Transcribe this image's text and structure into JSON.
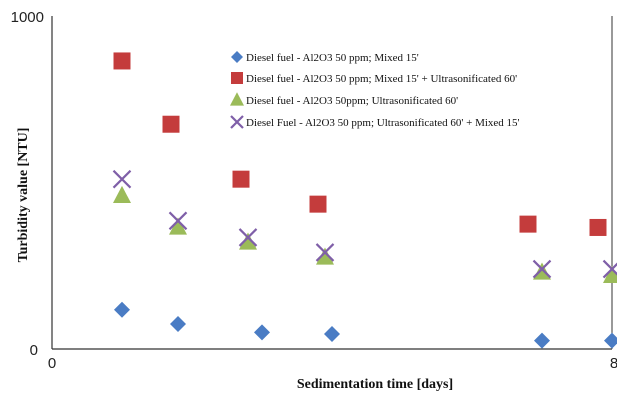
{
  "chart_data": {
    "type": "scatter",
    "xlabel": "Sedimentation time [days]",
    "ylabel": "Turbidity value [NTU]",
    "xlim": [
      0,
      8
    ],
    "ylim": [
      0,
      1000
    ],
    "x_ticks": [
      "0",
      "8"
    ],
    "y_ticks": [
      "0",
      "1000"
    ],
    "grid": false,
    "legend_position": "top-right",
    "series": [
      {
        "name": "Diesel fuel - Al2O3 50 ppm; Mixed 15'",
        "marker": "diamond",
        "color": "#4a7cc4",
        "points": [
          {
            "x": 1.0,
            "y": 118
          },
          {
            "x": 1.8,
            "y": 75
          },
          {
            "x": 3.0,
            "y": 50
          },
          {
            "x": 4.0,
            "y": 45
          },
          {
            "x": 7.0,
            "y": 25
          },
          {
            "x": 8.0,
            "y": 25
          }
        ]
      },
      {
        "name": "Diesel fuel - Al2O3 50 ppm; Mixed 15' + Ultrasonificated 60'",
        "marker": "square",
        "color": "#c43c3c",
        "points": [
          {
            "x": 1.0,
            "y": 865
          },
          {
            "x": 1.7,
            "y": 675
          },
          {
            "x": 2.7,
            "y": 510
          },
          {
            "x": 3.8,
            "y": 435
          },
          {
            "x": 6.8,
            "y": 375
          },
          {
            "x": 7.8,
            "y": 365
          }
        ]
      },
      {
        "name": "Diesel fuel - Al2O3 50ppm; Ultrasonificated 60'",
        "marker": "triangle",
        "color": "#9bbb59",
        "points": [
          {
            "x": 1.0,
            "y": 460
          },
          {
            "x": 1.8,
            "y": 365
          },
          {
            "x": 2.8,
            "y": 320
          },
          {
            "x": 3.9,
            "y": 275
          },
          {
            "x": 7.0,
            "y": 230
          },
          {
            "x": 8.0,
            "y": 220
          }
        ]
      },
      {
        "name": "Diesel Fuel - Al2O3 50 ppm; Ultrasonificated 60' + Mixed 15'",
        "marker": "x",
        "color": "#7f5fa8",
        "points": [
          {
            "x": 1.0,
            "y": 510
          },
          {
            "x": 1.8,
            "y": 385
          },
          {
            "x": 2.8,
            "y": 335
          },
          {
            "x": 3.9,
            "y": 290
          },
          {
            "x": 7.0,
            "y": 240
          },
          {
            "x": 8.0,
            "y": 240
          }
        ]
      }
    ]
  }
}
